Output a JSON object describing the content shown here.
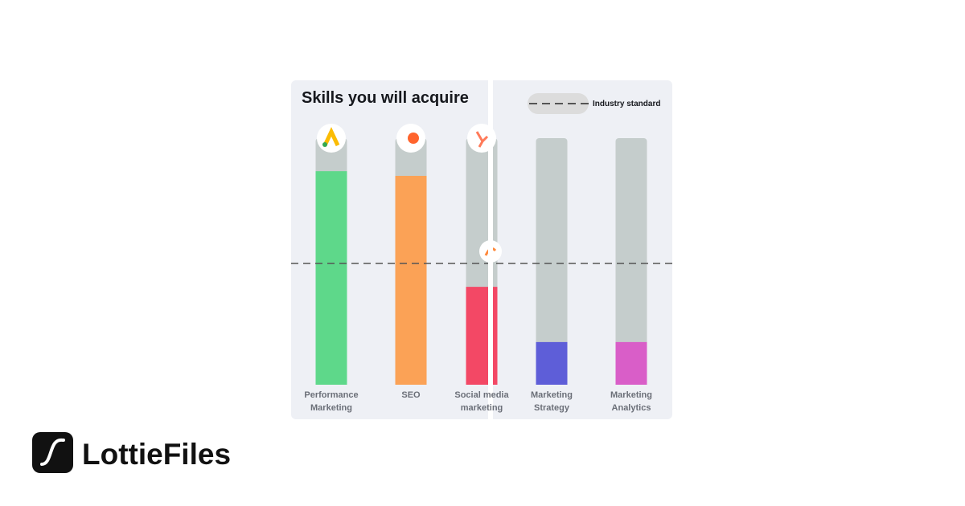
{
  "chart_data": {
    "type": "bar",
    "title": "Skills you will acquire",
    "categories": [
      "Performance Marketing",
      "SEO",
      "Social media marketing",
      "Marketing Strategy",
      "Marketing Analytics"
    ],
    "values": [
      86.6,
      84.7,
      39.7,
      17.3,
      17.3
    ],
    "colors": [
      "#5ed88a",
      "#fba256",
      "#f34865",
      "#5e5ed8",
      "#d95ec8"
    ],
    "ylim": [
      0,
      100
    ],
    "reference_line": {
      "label": "Industry standard",
      "value": 49.2
    }
  },
  "brand": {
    "name": "LottieFiles"
  }
}
